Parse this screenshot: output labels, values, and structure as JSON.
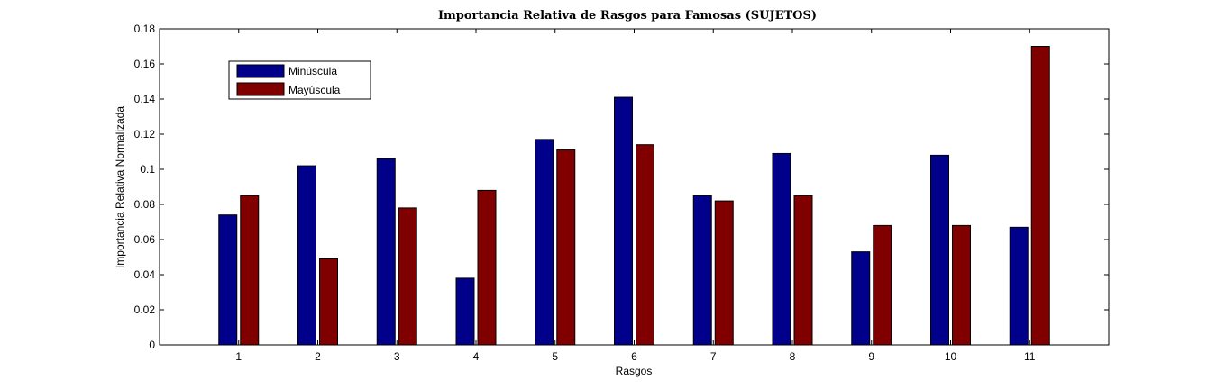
{
  "chart_data": {
    "type": "bar",
    "title": "Importancia Relativa de Rasgos para Famosas (SUJETOS)",
    "xlabel": "Rasgos",
    "ylabel": "Importancia Relativa Normalizada",
    "categories": [
      "1",
      "2",
      "3",
      "4",
      "5",
      "6",
      "7",
      "8",
      "9",
      "10",
      "11"
    ],
    "ylim": [
      0,
      0.18
    ],
    "yticks": [
      "0",
      "0.02",
      "0.04",
      "0.06",
      "0.08",
      "0.1",
      "0.12",
      "0.14",
      "0.16",
      "0.18"
    ],
    "grid": false,
    "legend_position": "top-left",
    "series": [
      {
        "name": "Minúscula",
        "color": "#00008B",
        "values": [
          0.074,
          0.102,
          0.106,
          0.038,
          0.117,
          0.141,
          0.085,
          0.109,
          0.053,
          0.108,
          0.067
        ]
      },
      {
        "name": "Mayúscula",
        "color": "#800000",
        "values": [
          0.085,
          0.049,
          0.078,
          0.088,
          0.111,
          0.114,
          0.082,
          0.085,
          0.068,
          0.068,
          0.17
        ]
      }
    ]
  }
}
